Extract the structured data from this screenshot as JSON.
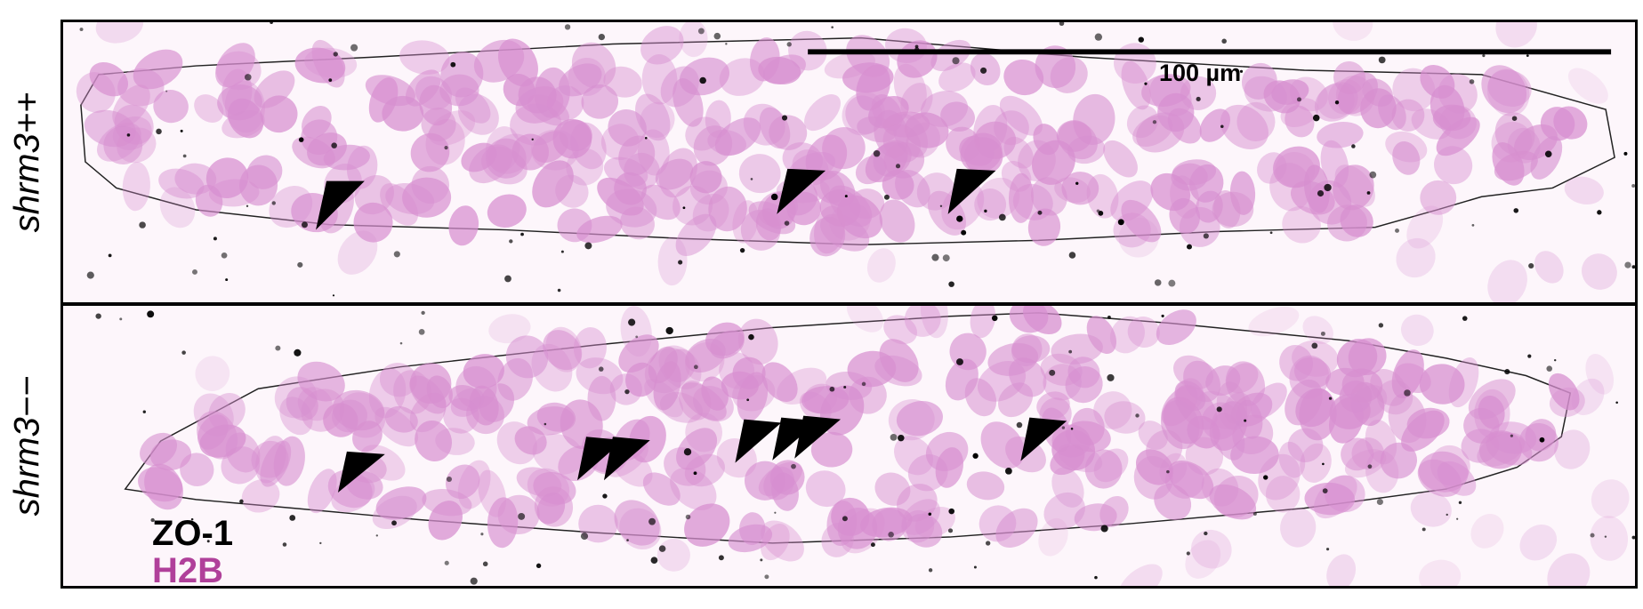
{
  "rows": [
    {
      "label": "shrm3++"
    },
    {
      "label": "shrm3−−"
    }
  ],
  "scalebar": {
    "label": "100 µm"
  },
  "legend": [
    {
      "label": "ZO-1",
      "color": "#000000"
    },
    {
      "label": "H2B",
      "color": "#b0409a"
    }
  ],
  "colors": {
    "nucleus": "#d78fd0",
    "background": "#fdf6fb",
    "marker": "#000000"
  }
}
